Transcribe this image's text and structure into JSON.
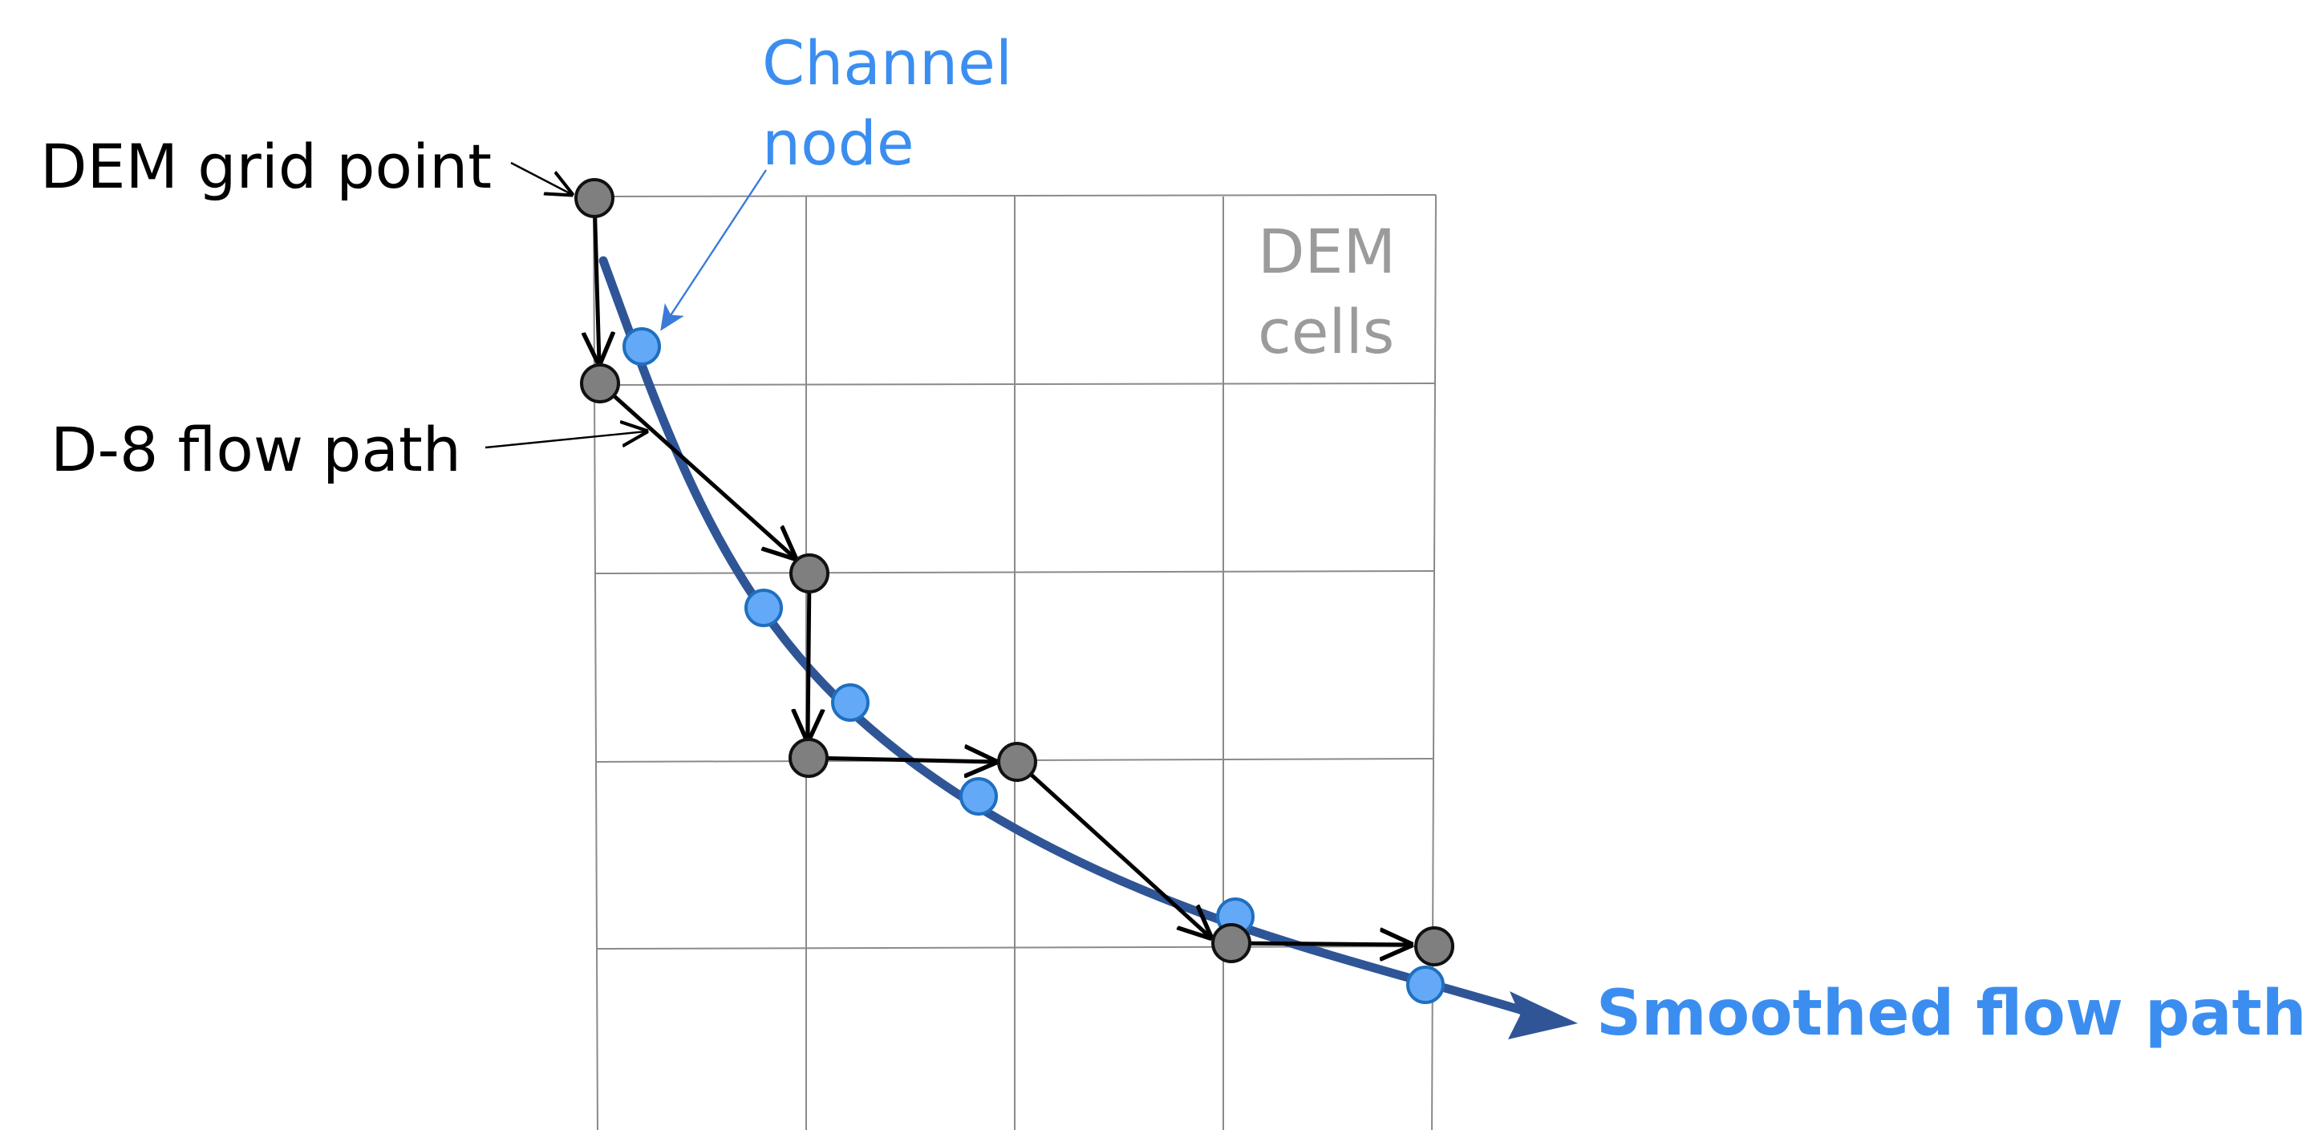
{
  "labels": {
    "dem_grid_point": "DEM grid point",
    "channel_node_line1": "Channel",
    "channel_node_line2": "node",
    "dem_cells_line1": "DEM",
    "dem_cells_line2": "cells",
    "d8_flow_path": "D-8 flow path",
    "smoothed_flow_path": "Smoothed flow path"
  },
  "colors": {
    "grid_line": "#8a8a8a",
    "dem_point_fill": "#7f7f7f",
    "dem_point_stroke": "#111111",
    "channel_node_fill": "#63a9f7",
    "channel_node_stroke": "#1f6fbf",
    "smoothed_path": "#2f5597",
    "d8_path": "#000000",
    "label_dark": "#000000",
    "label_blue": "#3b8ef0",
    "label_gray": "#9b9b9b"
  }
}
